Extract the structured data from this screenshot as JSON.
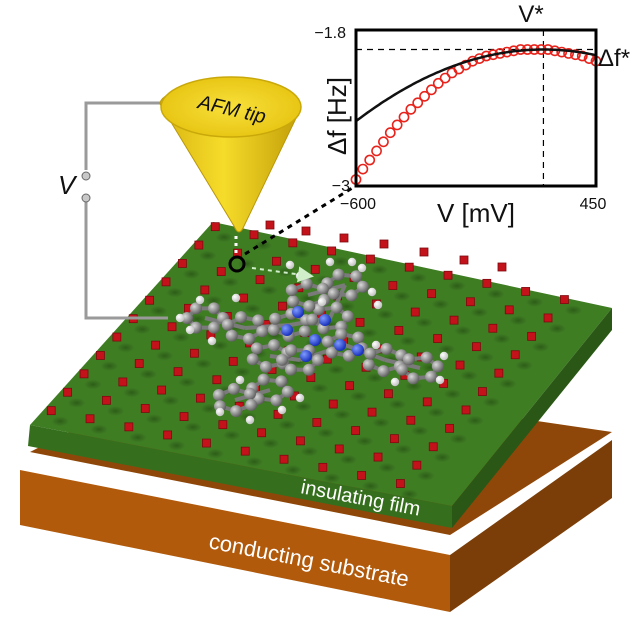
{
  "labels": {
    "afm_tip": "AFM tip",
    "bias": "V",
    "insulating_film": "insulating film",
    "conducting_substrate": "conducting substrate"
  },
  "colors": {
    "film_top": "#3d7a22",
    "film_side": "#2e5e19",
    "film_front": "#336b1d",
    "substrate_top": "#9a4e0a",
    "substrate_front": "#b35c0d",
    "substrate_side": "#7a3d08",
    "tip": "#f1d21a",
    "tip_dark": "#c9a80a",
    "chart_points": "#e8231c",
    "chart_fit": "#111111",
    "adatom": "#c4121b",
    "carbon": "#8d8d8d",
    "nitrogen": "#1e3fe0",
    "hydrogen": "#ffffff"
  },
  "chart_data": {
    "type": "scatter",
    "xlabel": "V [mV]",
    "ylabel": "Δf [Hz]",
    "x_ticks": [
      "−600",
      "450"
    ],
    "y_ticks": [
      "−1.8",
      "−3"
    ],
    "xlim": [
      -600,
      450
    ],
    "ylim": [
      -3,
      -1.8
    ],
    "vertex_label": "V*",
    "peak_label": "Δf*",
    "vertex": {
      "x": 220,
      "y": -1.95
    },
    "curvature": 8.2e-07,
    "series": [
      {
        "values": [
          [
            -600,
            -2.95
          ],
          [
            -570,
            -2.87
          ],
          [
            -540,
            -2.8
          ],
          [
            -510,
            -2.73
          ],
          [
            -480,
            -2.66
          ],
          [
            -450,
            -2.59
          ],
          [
            -420,
            -2.53
          ],
          [
            -390,
            -2.47
          ],
          [
            -360,
            -2.41
          ],
          [
            -330,
            -2.36
          ],
          [
            -300,
            -2.31
          ],
          [
            -270,
            -2.26
          ],
          [
            -240,
            -2.21
          ],
          [
            -210,
            -2.17
          ],
          [
            -180,
            -2.13
          ],
          [
            -150,
            -2.1
          ],
          [
            -120,
            -2.07
          ],
          [
            -90,
            -2.04
          ],
          [
            -60,
            -2.02
          ],
          [
            -30,
            -2.0
          ],
          [
            0,
            -1.99
          ],
          [
            30,
            -1.98
          ],
          [
            60,
            -1.97
          ],
          [
            90,
            -1.96
          ],
          [
            120,
            -1.95
          ],
          [
            150,
            -1.95
          ],
          [
            180,
            -1.95
          ],
          [
            210,
            -1.95
          ],
          [
            240,
            -1.95
          ],
          [
            270,
            -1.96
          ],
          [
            300,
            -1.97
          ],
          [
            330,
            -1.98
          ],
          [
            360,
            -1.99
          ],
          [
            390,
            -2.0
          ],
          [
            420,
            -2.02
          ],
          [
            450,
            -2.04
          ]
        ]
      }
    ]
  }
}
